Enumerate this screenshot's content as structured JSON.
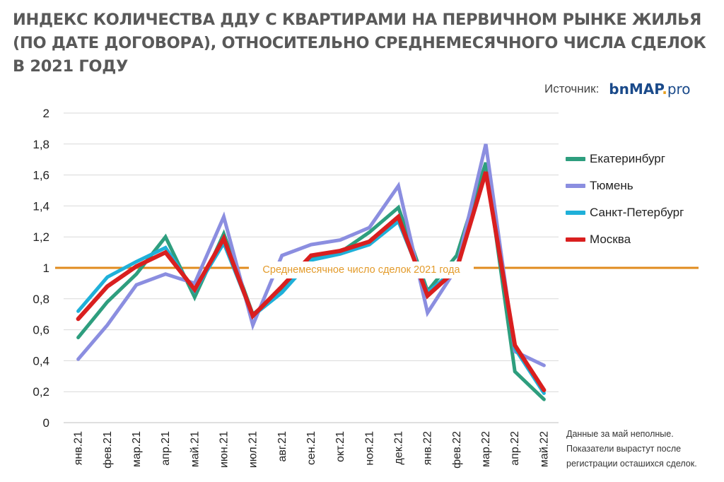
{
  "title_lines": [
    "ИНДЕКС КОЛИЧЕСТВА ДДУ С КВАРТИРАМИ НА ПЕРВИЧНОМ РЫНКЕ ЖИЛЬЯ",
    "(ПО ДАТЕ ДОГОВОРА),  ОТНОСИТЕЛЬНО СРЕДНЕМЕСЯЧНОГО ЧИСЛА  СДЕЛОК",
    "В 2021 ГОДУ"
  ],
  "source": {
    "label": "Источник:",
    "logo_main": "bnMAP",
    "logo_dot": ".",
    "logo_suffix": "pro"
  },
  "reference_line": {
    "value": 1,
    "label": "Среднемесячное число сделок 2021 года",
    "color": "#e08b1e"
  },
  "note_lines": [
    "Данные за май неполные.",
    "Показатели вырастут после",
    "регистрации осташихся сделок."
  ],
  "chart_data": {
    "type": "line",
    "categories": [
      "янв.21",
      "фев.21",
      "мар.21",
      "апр.21",
      "май.21",
      "июн.21",
      "июл.21",
      "авг.21",
      "сен.21",
      "окт.21",
      "ноя.21",
      "дек.21",
      "янв.22",
      "фев.22",
      "мар.22",
      "апр.22",
      "май.22"
    ],
    "yticks": [
      "0",
      "0,2",
      "0,4",
      "0,6",
      "0,8",
      "1",
      "1,2",
      "1,4",
      "1,6",
      "1,8",
      "2"
    ],
    "ylim": [
      0,
      2
    ],
    "grid": true,
    "legend_position": "right",
    "series": [
      {
        "name": "Екатеринбург",
        "color": "#2e9e7e",
        "width": 5,
        "values": [
          0.55,
          0.78,
          0.96,
          1.2,
          0.81,
          1.22,
          0.7,
          0.85,
          1.06,
          1.1,
          1.23,
          1.39,
          0.85,
          1.08,
          1.68,
          0.33,
          0.15
        ]
      },
      {
        "name": "Тюмень",
        "color": "#8b8ee0",
        "width": 5,
        "values": [
          0.41,
          0.63,
          0.89,
          0.96,
          0.9,
          1.33,
          0.63,
          1.08,
          1.15,
          1.18,
          1.26,
          1.53,
          0.71,
          1.0,
          1.8,
          0.46,
          0.37
        ]
      },
      {
        "name": "Санкт-Петербург",
        "color": "#1fb0d9",
        "width": 5,
        "values": [
          0.72,
          0.94,
          1.04,
          1.13,
          0.85,
          1.16,
          0.69,
          0.84,
          1.05,
          1.09,
          1.15,
          1.3,
          0.84,
          1.0,
          1.62,
          0.48,
          0.19
        ]
      },
      {
        "name": "Москва",
        "color": "#d91f1f",
        "width": 6,
        "values": [
          0.67,
          0.88,
          1.01,
          1.1,
          0.86,
          1.19,
          0.69,
          0.88,
          1.08,
          1.11,
          1.17,
          1.33,
          0.82,
          0.99,
          1.62,
          0.5,
          0.21
        ]
      }
    ]
  }
}
